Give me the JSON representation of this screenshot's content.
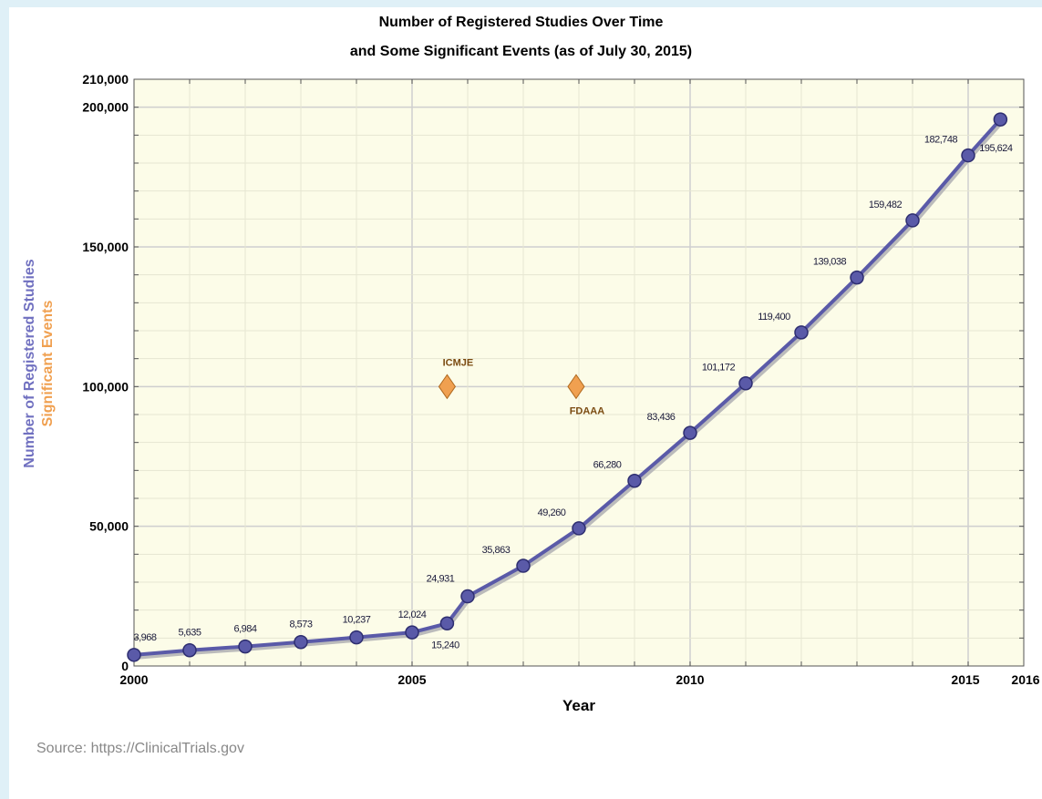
{
  "chart_data": {
    "type": "line",
    "title": [
      "Number of Registered Studies Over Time",
      "and Some Significant Events (as of July 30, 2015)"
    ],
    "xlabel": "Year",
    "ylabel": "Number of Registered Studies",
    "ylabel2": "Significant Events",
    "xlim": [
      2000,
      2016
    ],
    "ylim": [
      0,
      210000
    ],
    "x_ticks": [
      2000,
      2005,
      2010,
      2015,
      2016
    ],
    "y_ticks": [
      0,
      50000,
      100000,
      150000,
      200000,
      210000
    ],
    "x_tick_labels": [
      "2000",
      "2005",
      "2010",
      "2015",
      "2016"
    ],
    "y_tick_labels": [
      "0",
      "50,000",
      "100,000",
      "150,000",
      "200,000",
      "210,000"
    ],
    "grid": true,
    "series": [
      {
        "color": "#5a5aa8",
        "points": [
          {
            "x": 2000.0,
            "y": 3968,
            "label": "3,968"
          },
          {
            "x": 2001.0,
            "y": 5635,
            "label": "5,635"
          },
          {
            "x": 2002.0,
            "y": 6984,
            "label": "6,984"
          },
          {
            "x": 2003.0,
            "y": 8573,
            "label": "8,573"
          },
          {
            "x": 2004.0,
            "y": 10237,
            "label": "10,237"
          },
          {
            "x": 2005.0,
            "y": 12024,
            "label": "12,024"
          },
          {
            "x": 2005.63,
            "y": 15240,
            "label": "15,240"
          },
          {
            "x": 2006.0,
            "y": 24931,
            "label": "24,931"
          },
          {
            "x": 2007.0,
            "y": 35863,
            "label": "35,863"
          },
          {
            "x": 2008.0,
            "y": 49260,
            "label": "49,260"
          },
          {
            "x": 2009.0,
            "y": 66280,
            "label": "66,280"
          },
          {
            "x": 2010.0,
            "y": 83436,
            "label": "83,436"
          },
          {
            "x": 2011.0,
            "y": 101172,
            "label": "101,172"
          },
          {
            "x": 2012.0,
            "y": 119400,
            "label": "119,400"
          },
          {
            "x": 2013.0,
            "y": 139038,
            "label": "139,038"
          },
          {
            "x": 2014.0,
            "y": 159482,
            "label": "159,482"
          },
          {
            "x": 2015.0,
            "y": 182748,
            "label": "182,748"
          },
          {
            "x": 2015.58,
            "y": 195624,
            "label": "195,624"
          }
        ]
      }
    ],
    "events": [
      {
        "name": "ICMJE",
        "x": 2005.63,
        "y": 100000,
        "label_position": "above"
      },
      {
        "name": "FDAAA",
        "x": 2007.95,
        "y": 100000,
        "label_position": "below"
      }
    ],
    "colors": {
      "plot_background": "#fcfce8",
      "grid": "#cfcfcf",
      "line": "#5a5aa8",
      "marker_fill": "#5a5aa8",
      "event_marker": "#f0a050",
      "event_label": "#7a4a10",
      "ylabel_color": "#7070c0",
      "ylabel2_color": "#f0a050"
    }
  },
  "source_text": "Source: https://ClinicalTrials.gov"
}
